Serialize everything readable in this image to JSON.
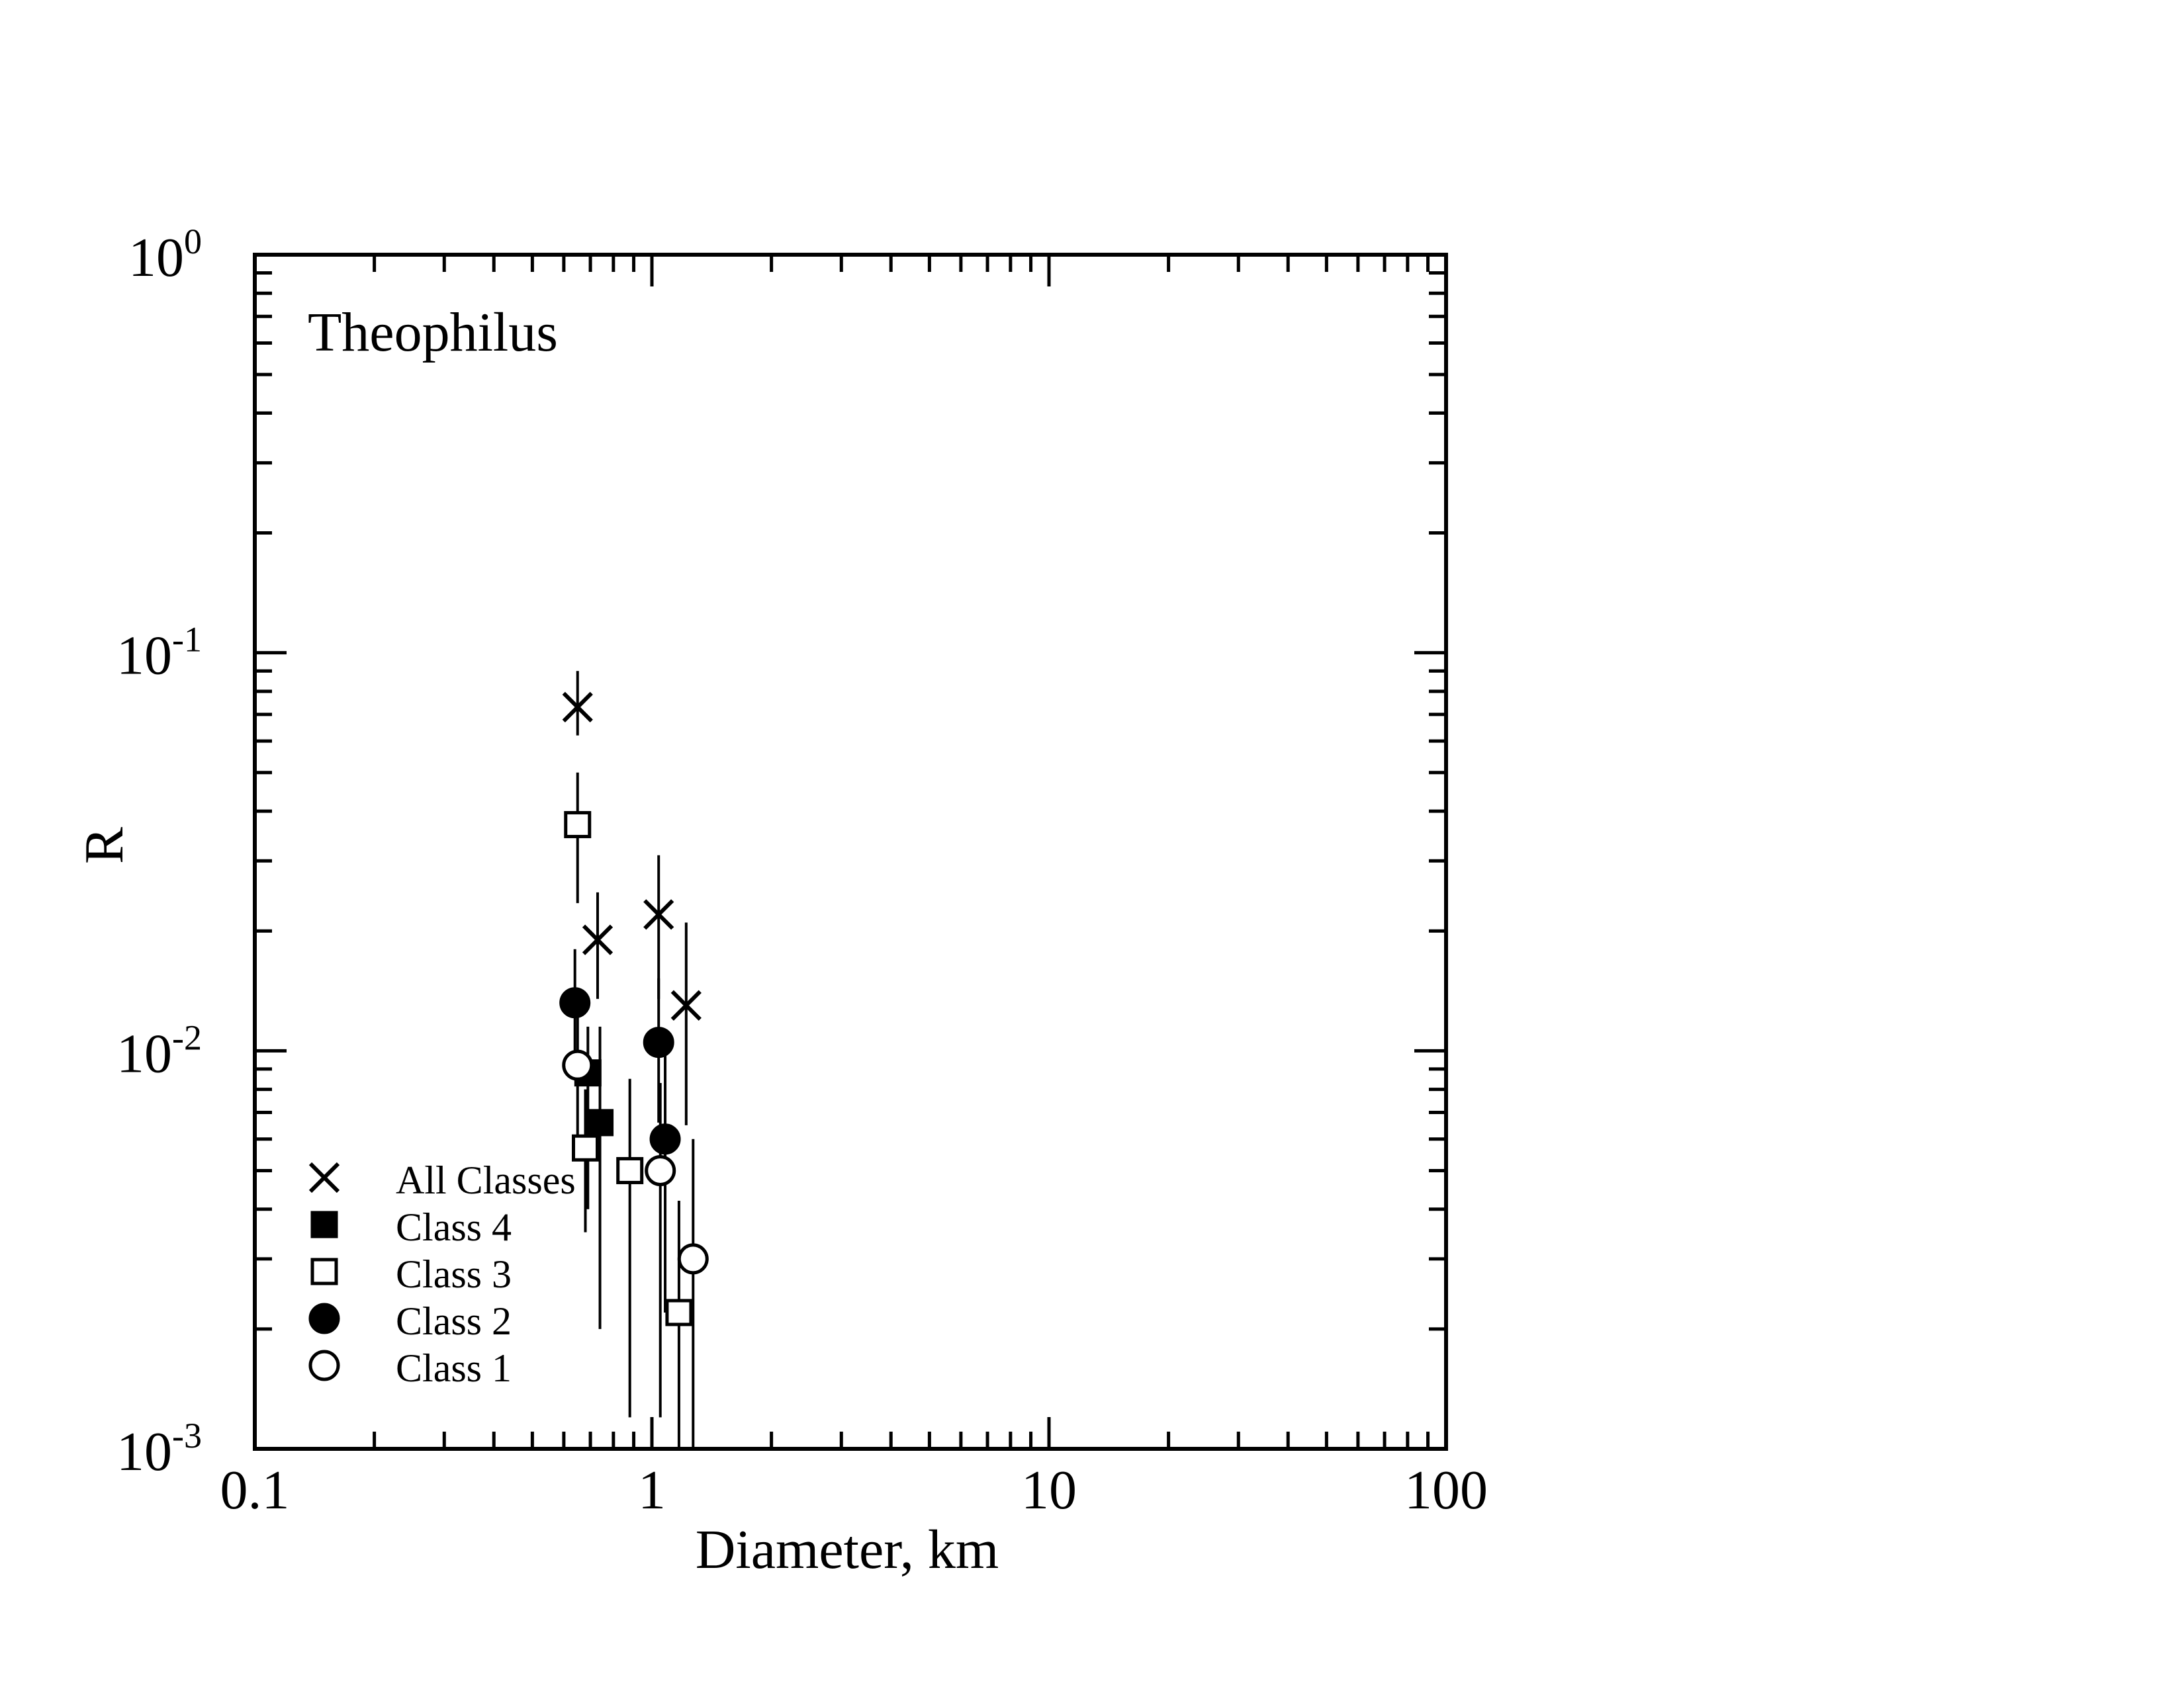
{
  "chart_data": {
    "type": "scatter",
    "title": "",
    "annotation": "Theophilus",
    "xlabel": "Diameter, km",
    "ylabel": "R",
    "x_scale": "log",
    "y_scale": "log",
    "xlim": [
      0.1,
      100
    ],
    "ylim": [
      0.001,
      1
    ],
    "x_ticks": [
      "0.1",
      "1",
      "10",
      "100"
    ],
    "y_ticks": [
      {
        "base": "10",
        "exp": "0"
      },
      {
        "base": "10",
        "exp": "-1"
      },
      {
        "base": "10",
        "exp": "-2"
      },
      {
        "base": "10",
        "exp": "-3"
      }
    ],
    "grid": false,
    "legend_position": "bottom-left",
    "series": [
      {
        "name": "All Classes",
        "marker": "cross",
        "points": [
          {
            "x": 0.65,
            "y": 0.073,
            "ylo": 0.062,
            "yhi": 0.09
          },
          {
            "x": 0.73,
            "y": 0.019,
            "ylo": 0.0135,
            "yhi": 0.025
          },
          {
            "x": 1.04,
            "y": 0.022,
            "ylo": 0.0135,
            "yhi": 0.031
          },
          {
            "x": 1.22,
            "y": 0.013,
            "ylo": 0.0065,
            "yhi": 0.021
          }
        ]
      },
      {
        "name": "Class 4",
        "marker": "filled-square",
        "points": [
          {
            "x": 0.69,
            "y": 0.0088,
            "ylo": 0.004,
            "yhi": 0.0115
          },
          {
            "x": 0.74,
            "y": 0.0066,
            "ylo": 0.002,
            "yhi": 0.0115
          }
        ]
      },
      {
        "name": "Class 3",
        "marker": "open-square",
        "points": [
          {
            "x": 0.65,
            "y": 0.037,
            "ylo": 0.0235,
            "yhi": 0.05
          },
          {
            "x": 0.68,
            "y": 0.0057,
            "ylo": 0.0035,
            "yhi": 0.008
          },
          {
            "x": 0.88,
            "y": 0.005,
            "ylo": 0.0012,
            "yhi": 0.0085
          },
          {
            "x": 1.17,
            "y": 0.0022,
            "ylo": 0.001,
            "yhi": 0.0042
          }
        ]
      },
      {
        "name": "Class 2",
        "marker": "filled-circle",
        "points": [
          {
            "x": 0.64,
            "y": 0.0132,
            "ylo": 0.009,
            "yhi": 0.018
          },
          {
            "x": 1.04,
            "y": 0.0105,
            "ylo": 0.0066,
            "yhi": 0.0152
          },
          {
            "x": 1.08,
            "y": 0.006,
            "ylo": 0.0022,
            "yhi": 0.0102
          }
        ]
      },
      {
        "name": "Class 1",
        "marker": "open-circle",
        "points": [
          {
            "x": 0.65,
            "y": 0.0092,
            "ylo": 0.0055,
            "yhi": 0.0125
          },
          {
            "x": 1.05,
            "y": 0.005,
            "ylo": 0.0012,
            "yhi": 0.0083
          },
          {
            "x": 1.27,
            "y": 0.003,
            "ylo": 0.001,
            "yhi": 0.006
          }
        ]
      }
    ]
  }
}
